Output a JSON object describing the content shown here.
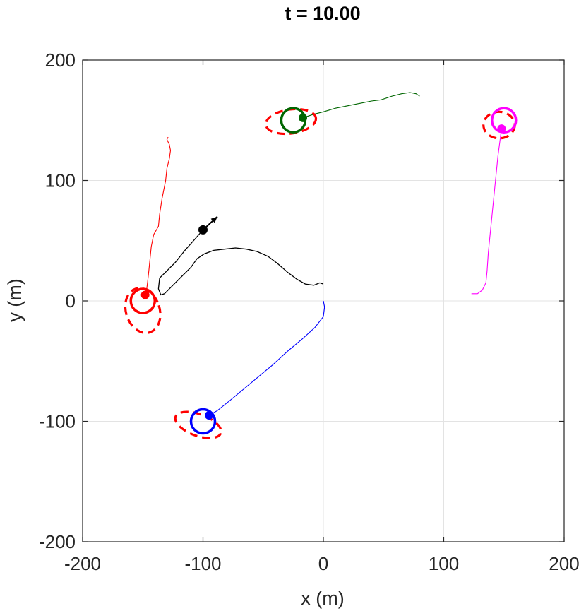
{
  "chart_data": {
    "type": "line",
    "title": "t = 10.00",
    "xlabel": "x (m)",
    "ylabel": "y (m)",
    "xlim": [
      -200,
      200
    ],
    "ylim": [
      -200,
      200
    ],
    "xticks": [
      -200,
      -100,
      0,
      100,
      200
    ],
    "yticks": [
      -200,
      -100,
      0,
      100,
      200
    ],
    "xtick_labels": [
      "-200",
      "-100",
      "0",
      "100",
      "200"
    ],
    "ytick_labels": [
      "-200",
      "-100",
      "0",
      "100",
      "200"
    ],
    "grid": true,
    "pursuer": {
      "color": "#000000",
      "position": [
        -100,
        59
      ],
      "heading_to": [
        -88,
        70
      ],
      "path": [
        [
          0,
          14
        ],
        [
          -3,
          15
        ],
        [
          -8,
          13
        ],
        [
          -15,
          14
        ],
        [
          -22,
          18
        ],
        [
          -30,
          24
        ],
        [
          -38,
          31
        ],
        [
          -46,
          37
        ],
        [
          -55,
          41
        ],
        [
          -64,
          43
        ],
        [
          -73,
          44
        ],
        [
          -82,
          43
        ],
        [
          -91,
          42
        ],
        [
          -99,
          39
        ],
        [
          -105,
          35
        ],
        [
          -110,
          28
        ],
        [
          -116,
          22
        ],
        [
          -122,
          16
        ],
        [
          -128,
          10
        ],
        [
          -132,
          6
        ],
        [
          -135,
          5
        ],
        [
          -137,
          10
        ],
        [
          -136,
          19
        ],
        [
          -130,
          25
        ],
        [
          -123,
          32
        ],
        [
          -115,
          42
        ],
        [
          -107,
          51
        ],
        [
          -100,
          59
        ]
      ]
    },
    "targets": [
      {
        "color": "#ff0000",
        "circle_center": [
          -150,
          0
        ],
        "estimate": [
          -148,
          5
        ],
        "ellipse": {
          "cx": -150,
          "cy": -8,
          "rx": 14,
          "ry": 19,
          "angle": 18
        },
        "path": [
          [
            -129,
            136
          ],
          [
            -130,
            134
          ],
          [
            -128,
            130
          ],
          [
            -127,
            125
          ],
          [
            -128,
            118
          ],
          [
            -130,
            110
          ],
          [
            -131,
            100
          ],
          [
            -134,
            85
          ],
          [
            -136,
            72
          ],
          [
            -137,
            62
          ],
          [
            -141,
            55
          ],
          [
            -143,
            45
          ],
          [
            -144,
            35
          ],
          [
            -145,
            25
          ],
          [
            -146,
            16
          ],
          [
            -147,
            8
          ],
          [
            -148,
            5
          ]
        ]
      },
      {
        "color": "#006600",
        "circle_center": [
          -25,
          150
        ],
        "estimate": [
          -17,
          152
        ],
        "ellipse": {
          "cx": -27,
          "cy": 149,
          "rx": 21,
          "ry": 10,
          "angle": 8
        },
        "path": [
          [
            80,
            170
          ],
          [
            77,
            172
          ],
          [
            72,
            173
          ],
          [
            65,
            172
          ],
          [
            57,
            170
          ],
          [
            48,
            167
          ],
          [
            40,
            166
          ],
          [
            30,
            164
          ],
          [
            20,
            162
          ],
          [
            10,
            160
          ],
          [
            0,
            157
          ],
          [
            -8,
            155
          ],
          [
            -17,
            152
          ]
        ]
      },
      {
        "color": "#ff00ff",
        "circle_center": [
          150,
          150
        ],
        "estimate": [
          148,
          143
        ],
        "ellipse": {
          "cx": 146,
          "cy": 146,
          "rx": 13,
          "ry": 11,
          "angle": 0
        },
        "path": [
          [
            123,
            6
          ],
          [
            128,
            6
          ],
          [
            132,
            9
          ],
          [
            135,
            15
          ],
          [
            136,
            25
          ],
          [
            137,
            40
          ],
          [
            139,
            60
          ],
          [
            141,
            80
          ],
          [
            143,
            100
          ],
          [
            145,
            120
          ],
          [
            147,
            135
          ],
          [
            148,
            143
          ]
        ]
      },
      {
        "color": "#0000ff",
        "circle_center": [
          -100,
          -100
        ],
        "estimate": [
          -95,
          -95
        ],
        "ellipse": {
          "cx": -104,
          "cy": -103,
          "rx": 20,
          "ry": 9,
          "angle": -20
        },
        "path": [
          [
            0,
            0
          ],
          [
            1,
            -5
          ],
          [
            0,
            -13
          ],
          [
            -7,
            -22
          ],
          [
            -18,
            -32
          ],
          [
            -30,
            -42
          ],
          [
            -42,
            -53
          ],
          [
            -54,
            -63
          ],
          [
            -66,
            -73
          ],
          [
            -78,
            -83
          ],
          [
            -88,
            -91
          ],
          [
            -95,
            -95
          ]
        ]
      }
    ]
  }
}
